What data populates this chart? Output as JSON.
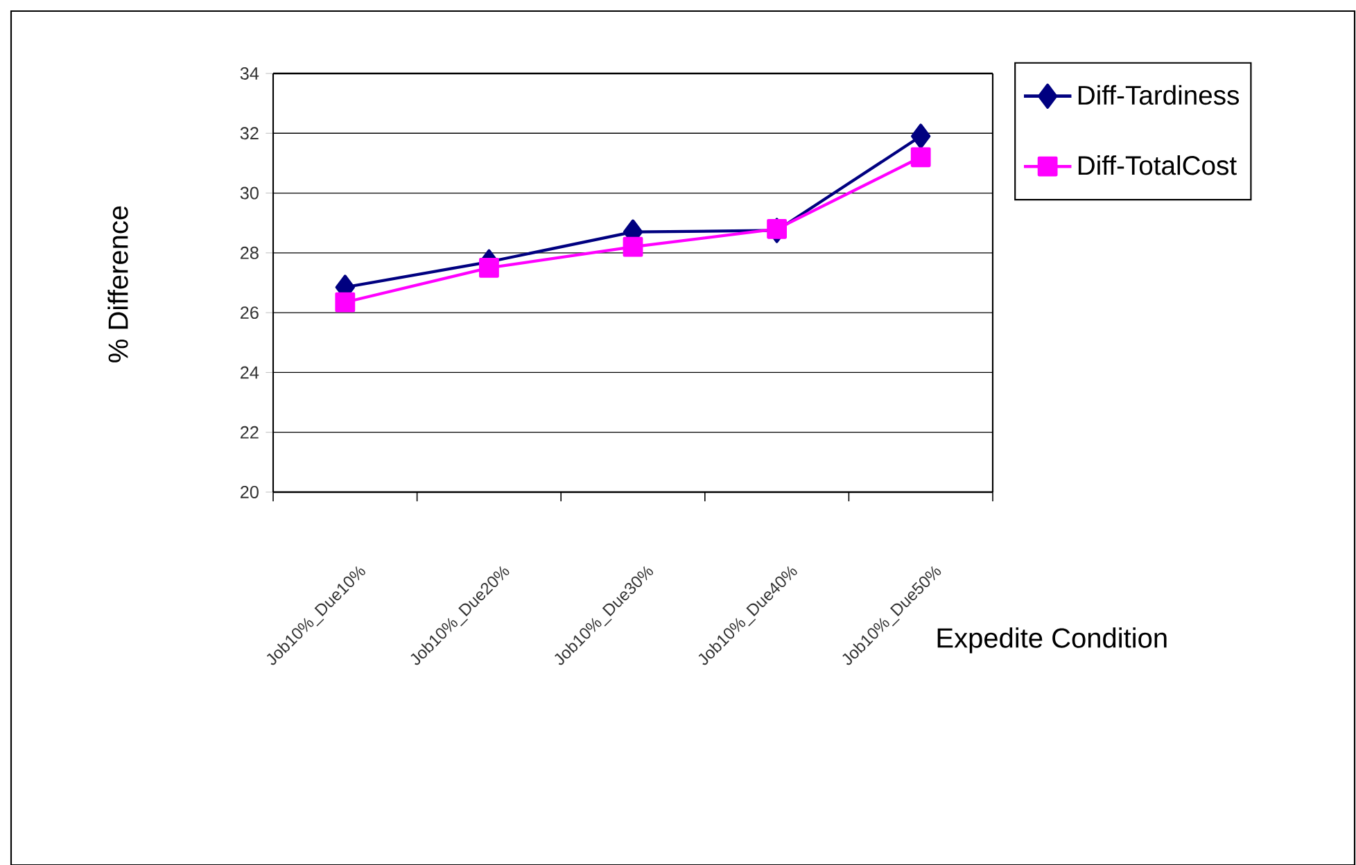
{
  "chart_data": {
    "type": "line",
    "xlabel": "Expedite Condition",
    "ylabel": "% Difference",
    "categories": [
      "Job10%_Due10%",
      "Job10%_Due20%",
      "Job10%_Due30%",
      "Job10%_Due40%",
      "Job10%_Due50%"
    ],
    "series": [
      {
        "name": "Diff-Tardiness",
        "color": "#000080",
        "marker": "diamond",
        "values": [
          26.85,
          27.7,
          28.7,
          28.75,
          31.9
        ]
      },
      {
        "name": "Diff-TotalCost",
        "color": "#ff00ff",
        "marker": "square",
        "values": [
          26.35,
          27.5,
          28.2,
          28.8,
          31.2
        ]
      }
    ],
    "ylim": [
      20,
      34
    ],
    "yticks": [
      20,
      22,
      24,
      26,
      28,
      30,
      32,
      34
    ],
    "grid": "y",
    "legend": "right",
    "line_style": "solid"
  }
}
